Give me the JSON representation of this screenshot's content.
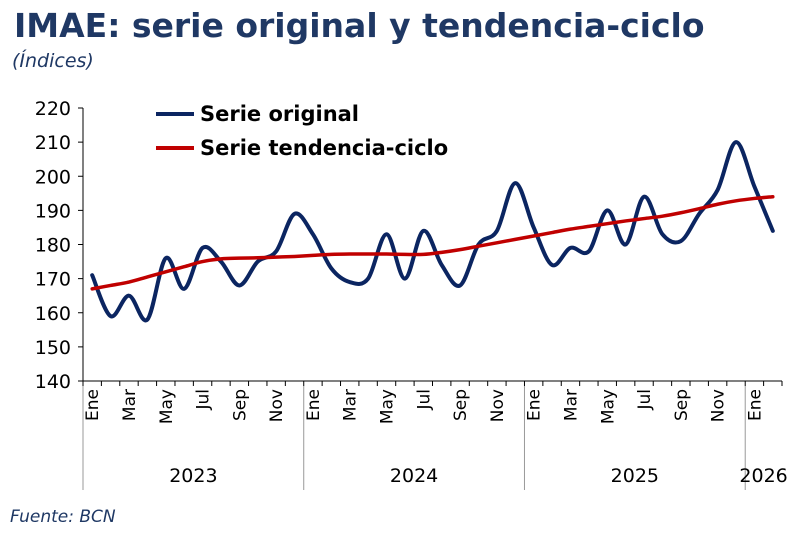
{
  "title": "IMAE: serie original y tendencia-ciclo",
  "subtitle": "(Índices)",
  "source": "Fuente: BCN",
  "colors": {
    "title": "#1f3864",
    "original": "#0b2561",
    "trend": "#c00000"
  },
  "chart_data": {
    "type": "line",
    "ylim": [
      140,
      220
    ],
    "yticks": [
      140,
      150,
      160,
      170,
      180,
      190,
      200,
      210,
      220
    ],
    "legend_position": "top-left",
    "grid": false,
    "month_labels": [
      "Ene",
      "Mar",
      "May",
      "Jul",
      "Sep",
      "Nov",
      "Ene",
      "Mar",
      "May",
      "Jul",
      "Sep",
      "Nov",
      "Ene",
      "Mar",
      "May",
      "Jul",
      "Sep",
      "Nov",
      "Ene"
    ],
    "years": [
      "2023",
      "2024",
      "2025",
      "2026"
    ],
    "x": [
      "2023-01",
      "2023-02",
      "2023-03",
      "2023-04",
      "2023-05",
      "2023-06",
      "2023-07",
      "2023-08",
      "2023-09",
      "2023-10",
      "2023-11",
      "2023-12",
      "2024-01",
      "2024-02",
      "2024-03",
      "2024-04",
      "2024-05",
      "2024-06",
      "2024-07",
      "2024-08",
      "2024-09",
      "2024-10",
      "2024-11",
      "2024-12",
      "2025-01",
      "2025-02",
      "2025-03",
      "2025-04",
      "2025-05",
      "2025-06",
      "2025-07",
      "2025-08",
      "2025-09",
      "2025-10",
      "2025-11",
      "2025-12",
      "2026-01",
      "2026-02"
    ],
    "series": [
      {
        "name": "Serie original",
        "values": [
          171,
          159,
          165,
          158,
          176,
          167,
          179,
          175,
          168,
          175,
          178,
          189,
          183,
          173,
          169,
          170,
          183,
          170,
          184,
          174,
          168,
          180,
          184,
          198,
          185,
          174,
          179,
          178,
          190,
          180,
          194,
          183,
          181,
          189,
          196,
          210,
          197,
          184
        ]
      },
      {
        "name": "Serie tendencia-ciclo",
        "values": [
          167,
          168,
          169,
          170.5,
          172,
          173.5,
          175,
          175.8,
          176,
          176.1,
          176.3,
          176.5,
          176.8,
          177.1,
          177.2,
          177.2,
          177.2,
          177.1,
          177.1,
          177.7,
          178.5,
          179.5,
          180.5,
          181.5,
          182.5,
          183.5,
          184.5,
          185.3,
          186.1,
          186.9,
          187.6,
          188.3,
          189.3,
          190.5,
          191.8,
          192.8,
          193.5,
          194
        ]
      }
    ]
  }
}
